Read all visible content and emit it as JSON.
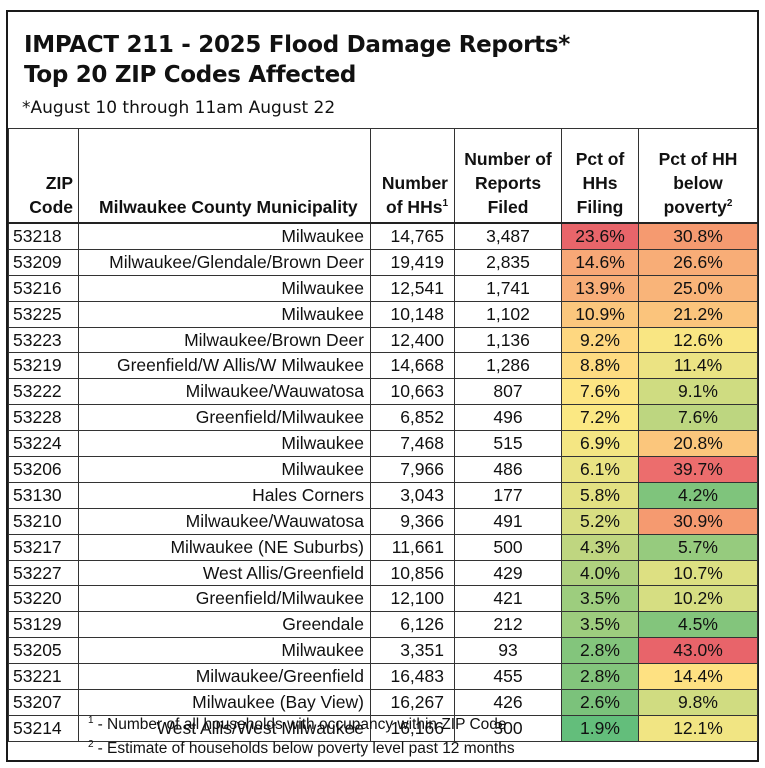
{
  "title": {
    "line1": "IMPACT 211 - 2025 Flood Damage Reports*",
    "line2": "Top 20 ZIP Codes Affected",
    "subtitle": "*August 10 through 11am August 22"
  },
  "columns": {
    "zip": [
      "ZIP",
      "Code"
    ],
    "municipality": "Milwaukee County Municipality",
    "households": [
      "Number",
      "of HHs"
    ],
    "households_sup": "1",
    "reports": [
      "Number of",
      "Reports",
      "Filed"
    ],
    "pct_filing": [
      "Pct of",
      "HHs",
      "Filing"
    ],
    "pct_poverty": [
      "Pct of HH",
      "below",
      "poverty"
    ],
    "pct_poverty_sup": "2"
  },
  "rows": [
    {
      "zip": "53218",
      "muni": "Milwaukee",
      "hhs": "14,765",
      "reports": "3,487",
      "pct_filing": "23.6%",
      "pct_poverty": "30.8%",
      "filing_color": "#e8656a",
      "poverty_color": "#f59a70"
    },
    {
      "zip": "53209",
      "muni": "Milwaukee/Glendale/Brown Deer",
      "hhs": "19,419",
      "reports": "2,835",
      "pct_filing": "14.6%",
      "pct_poverty": "26.6%",
      "filing_color": "#f7a877",
      "poverty_color": "#f8ad77"
    },
    {
      "zip": "53216",
      "muni": "Milwaukee",
      "hhs": "12,541",
      "reports": "1,741",
      "pct_filing": "13.9%",
      "pct_poverty": "25.0%",
      "filing_color": "#f8ae78",
      "poverty_color": "#f9b479"
    },
    {
      "zip": "53225",
      "muni": "Milwaukee",
      "hhs": "10,148",
      "reports": "1,102",
      "pct_filing": "10.9%",
      "pct_poverty": "21.2%",
      "filing_color": "#fbc77d",
      "poverty_color": "#fbc47c"
    },
    {
      "zip": "53223",
      "muni": "Milwaukee/Brown Deer",
      "hhs": "12,400",
      "reports": "1,136",
      "pct_filing": "9.2%",
      "pct_poverty": "12.6%",
      "filing_color": "#fed780",
      "poverty_color": "#f9e683"
    },
    {
      "zip": "53219",
      "muni": "Greenfield/W Allis/W Milwaukee",
      "hhs": "14,668",
      "reports": "1,286",
      "pct_filing": "8.8%",
      "pct_poverty": "11.4%",
      "filing_color": "#fedb81",
      "poverty_color": "#ebe383"
    },
    {
      "zip": "53222",
      "muni": "Milwaukee/Wauwatosa",
      "hhs": "10,663",
      "reports": "807",
      "pct_filing": "7.6%",
      "pct_poverty": "9.1%",
      "filing_color": "#fde583",
      "poverty_color": "#cfdc81"
    },
    {
      "zip": "53228",
      "muni": "Greenfield/Milwaukee",
      "hhs": "6,852",
      "reports": "496",
      "pct_filing": "7.2%",
      "pct_poverty": "7.6%",
      "filing_color": "#fbe883",
      "poverty_color": "#bdd680"
    },
    {
      "zip": "53224",
      "muni": "Milwaukee",
      "hhs": "7,468",
      "reports": "515",
      "pct_filing": "6.9%",
      "pct_poverty": "20.8%",
      "filing_color": "#f4e683",
      "poverty_color": "#fbc67c"
    },
    {
      "zip": "53206",
      "muni": "Milwaukee",
      "hhs": "7,966",
      "reports": "486",
      "pct_filing": "6.1%",
      "pct_poverty": "39.7%",
      "filing_color": "#e9e383",
      "poverty_color": "#ec6d6d"
    },
    {
      "zip": "53130",
      "muni": "Hales Corners",
      "hhs": "3,043",
      "reports": "177",
      "pct_filing": "5.8%",
      "pct_poverty": "4.2%",
      "filing_color": "#e3e182",
      "poverty_color": "#7fc47c"
    },
    {
      "zip": "53210",
      "muni": "Milwaukee/Wauwatosa",
      "hhs": "9,366",
      "reports": "491",
      "pct_filing": "5.2%",
      "pct_poverty": "30.9%",
      "filing_color": "#d8de82",
      "poverty_color": "#f59a70"
    },
    {
      "zip": "53217",
      "muni": "Milwaukee (NE Suburbs)",
      "hhs": "11,661",
      "reports": "500",
      "pct_filing": "4.3%",
      "pct_poverty": "5.7%",
      "filing_color": "#bfd680",
      "poverty_color": "#96cb7e"
    },
    {
      "zip": "53227",
      "muni": "West Allis/Greenfield",
      "hhs": "10,856",
      "reports": "429",
      "pct_filing": "4.0%",
      "pct_poverty": "10.7%",
      "filing_color": "#afd17f",
      "poverty_color": "#dde082"
    },
    {
      "zip": "53220",
      "muni": "Greenfield/Milwaukee",
      "hhs": "12,100",
      "reports": "421",
      "pct_filing": "3.5%",
      "pct_poverty": "10.2%",
      "filing_color": "#9dcd7e",
      "poverty_color": "#d6de82"
    },
    {
      "zip": "53129",
      "muni": "Greendale",
      "hhs": "6,126",
      "reports": "212",
      "pct_filing": "3.5%",
      "pct_poverty": "4.5%",
      "filing_color": "#9dcd7e",
      "poverty_color": "#83c57c"
    },
    {
      "zip": "53205",
      "muni": "Milwaukee",
      "hhs": "3,351",
      "reports": "93",
      "pct_filing": "2.8%",
      "pct_poverty": "43.0%",
      "filing_color": "#83c57c",
      "poverty_color": "#e8646a"
    },
    {
      "zip": "53221",
      "muni": "Milwaukee/Greenfield",
      "hhs": "16,483",
      "reports": "455",
      "pct_filing": "2.8%",
      "pct_poverty": "14.4%",
      "filing_color": "#83c57c",
      "poverty_color": "#fee182"
    },
    {
      "zip": "53207",
      "muni": "Milwaukee (Bay View)",
      "hhs": "16,267",
      "reports": "426",
      "pct_filing": "2.6%",
      "pct_poverty": "9.8%",
      "filing_color": "#7bc27b",
      "poverty_color": "#d0dc81"
    },
    {
      "zip": "53214",
      "muni": "West Allis/West Milwaukee",
      "hhs": "16,166",
      "reports": "300",
      "pct_filing": "1.9%",
      "pct_poverty": "12.1%",
      "filing_color": "#63be7b",
      "poverty_color": "#f1e583"
    }
  ],
  "footnotes": [
    {
      "mark": "1",
      "text": "- Number of all households with occupancy within ZIP Code"
    },
    {
      "mark": "2",
      "text": "- Estimate of households below poverty level past 12 months"
    }
  ]
}
